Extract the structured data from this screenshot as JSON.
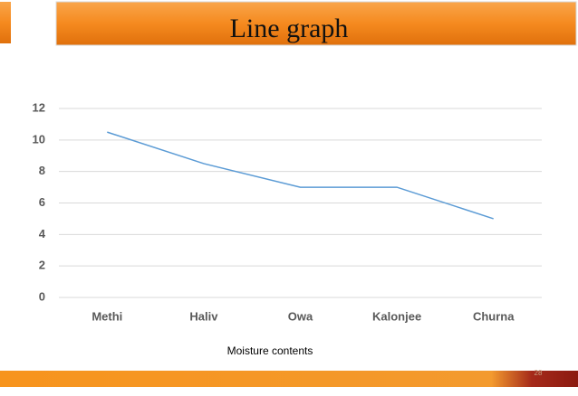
{
  "chart_data": {
    "type": "line",
    "title": "Line graph",
    "x_label": "Moisture contents",
    "categories": [
      "Methi",
      "Haliv",
      "Owa",
      "Kalonjee",
      "Churna"
    ],
    "series": [
      {
        "color": "#5b9bd5",
        "values": [
          10.5,
          8.5,
          7,
          7,
          5
        ]
      }
    ],
    "ylim": [
      0,
      12
    ],
    "yticks": [
      0,
      2,
      4,
      6,
      8,
      10,
      12
    ],
    "grid": true
  },
  "slide_number": "28"
}
